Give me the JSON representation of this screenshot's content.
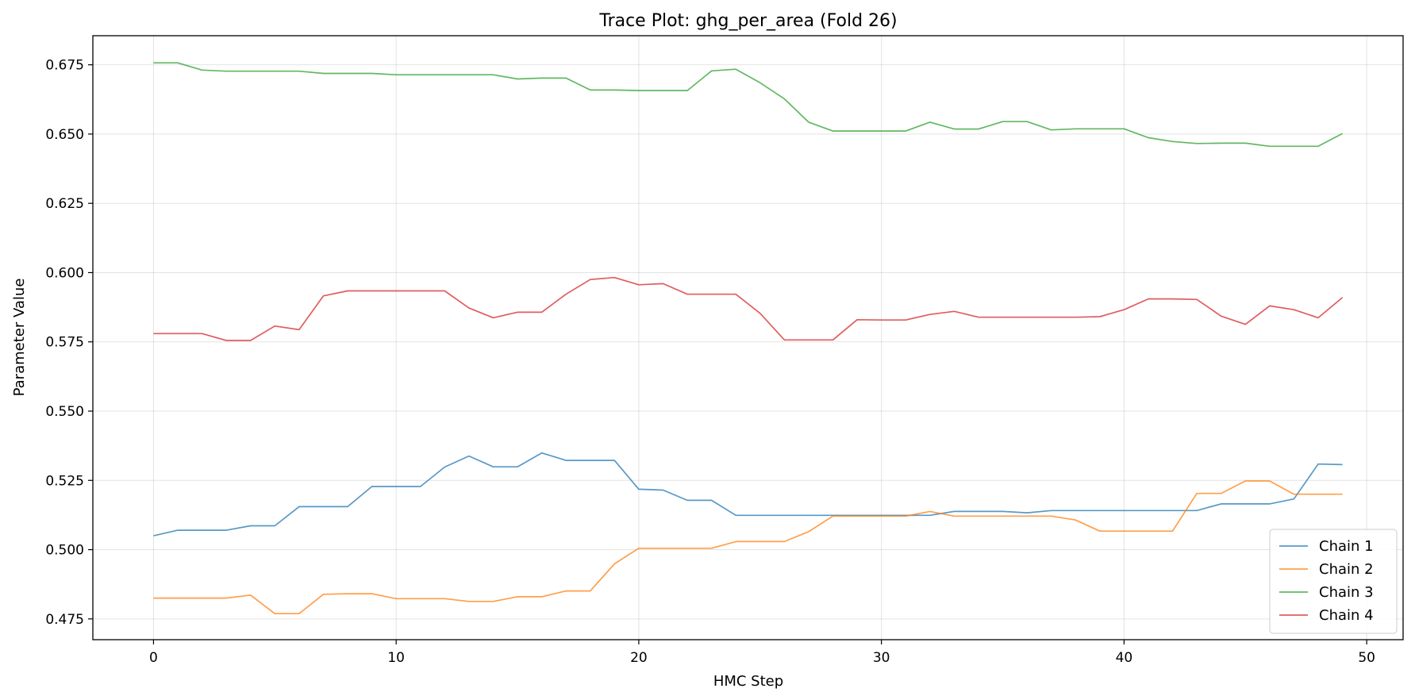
{
  "chart_data": {
    "type": "line",
    "title": "Trace Plot: ghg_per_area (Fold 26)",
    "xlabel": "HMC Step",
    "ylabel": "Parameter Value",
    "xlim": [
      -2.5,
      51.5
    ],
    "ylim": [
      0.4675,
      0.6855
    ],
    "xticks": [
      0,
      10,
      20,
      30,
      40,
      50
    ],
    "yticks": [
      0.475,
      0.5,
      0.525,
      0.55,
      0.575,
      0.6,
      0.625,
      0.65,
      0.675
    ],
    "grid": true,
    "legend_position": "lower-right",
    "x": [
      0,
      1,
      2,
      3,
      4,
      5,
      6,
      7,
      8,
      9,
      10,
      11,
      12,
      13,
      14,
      15,
      16,
      17,
      18,
      19,
      20,
      21,
      22,
      23,
      24,
      25,
      26,
      27,
      28,
      29,
      30,
      31,
      32,
      33,
      34,
      35,
      36,
      37,
      38,
      39,
      40,
      41,
      42,
      43,
      44,
      45,
      46,
      47,
      48,
      49
    ],
    "series": [
      {
        "name": "Chain 1",
        "color": "#1f77b4",
        "values": [
          0.505,
          0.507,
          0.507,
          0.507,
          0.5086,
          0.5086,
          0.5155,
          0.5155,
          0.5155,
          0.5228,
          0.5228,
          0.5228,
          0.5298,
          0.5338,
          0.5299,
          0.5299,
          0.5349,
          0.5322,
          0.5322,
          0.5322,
          0.5218,
          0.5215,
          0.5178,
          0.5178,
          0.5124,
          0.5124,
          0.5124,
          0.5124,
          0.5124,
          0.5124,
          0.5124,
          0.5124,
          0.5124,
          0.5138,
          0.5138,
          0.5138,
          0.5133,
          0.5141,
          0.5141,
          0.5141,
          0.5141,
          0.5141,
          0.5141,
          0.5141,
          0.5165,
          0.5165,
          0.5165,
          0.5183,
          0.5309,
          0.5307
        ]
      },
      {
        "name": "Chain 2",
        "color": "#ff7f0e",
        "values": [
          0.4825,
          0.4825,
          0.4825,
          0.4825,
          0.4836,
          0.4769,
          0.4769,
          0.4839,
          0.4841,
          0.4841,
          0.4823,
          0.4823,
          0.4823,
          0.4813,
          0.4813,
          0.483,
          0.483,
          0.4851,
          0.4851,
          0.4949,
          0.5005,
          0.5005,
          0.5005,
          0.5005,
          0.5029,
          0.5029,
          0.5029,
          0.5065,
          0.5121,
          0.5121,
          0.5121,
          0.5121,
          0.5138,
          0.5121,
          0.5121,
          0.5121,
          0.5121,
          0.5121,
          0.5107,
          0.5067,
          0.5067,
          0.5067,
          0.5067,
          0.5203,
          0.5203,
          0.5248,
          0.5248,
          0.52,
          0.52,
          0.52
        ]
      },
      {
        "name": "Chain 3",
        "color": "#2ca02c",
        "values": [
          0.6757,
          0.6757,
          0.6731,
          0.6727,
          0.6727,
          0.6727,
          0.6727,
          0.6719,
          0.6719,
          0.6719,
          0.6714,
          0.6714,
          0.6714,
          0.6714,
          0.6714,
          0.6699,
          0.6702,
          0.6702,
          0.6659,
          0.6659,
          0.6657,
          0.6657,
          0.6657,
          0.6728,
          0.6734,
          0.6685,
          0.6627,
          0.6543,
          0.6511,
          0.6511,
          0.6511,
          0.6511,
          0.6543,
          0.6518,
          0.6518,
          0.6545,
          0.6545,
          0.6515,
          0.6519,
          0.6519,
          0.6519,
          0.6487,
          0.6473,
          0.6466,
          0.6467,
          0.6467,
          0.6456,
          0.6456,
          0.6456,
          0.6502
        ]
      },
      {
        "name": "Chain 4",
        "color": "#d62728",
        "values": [
          0.578,
          0.578,
          0.578,
          0.5755,
          0.5755,
          0.5807,
          0.5794,
          0.5916,
          0.5934,
          0.5934,
          0.5934,
          0.5934,
          0.5934,
          0.5872,
          0.5837,
          0.5857,
          0.5857,
          0.5922,
          0.5975,
          0.5982,
          0.5956,
          0.596,
          0.5922,
          0.5922,
          0.5922,
          0.5853,
          0.5757,
          0.5757,
          0.5757,
          0.583,
          0.5829,
          0.5829,
          0.5849,
          0.586,
          0.5839,
          0.5839,
          0.5839,
          0.5839,
          0.5839,
          0.5841,
          0.5866,
          0.5905,
          0.5905,
          0.5903,
          0.5843,
          0.5813,
          0.588,
          0.5866,
          0.5837,
          0.591
        ]
      }
    ]
  }
}
